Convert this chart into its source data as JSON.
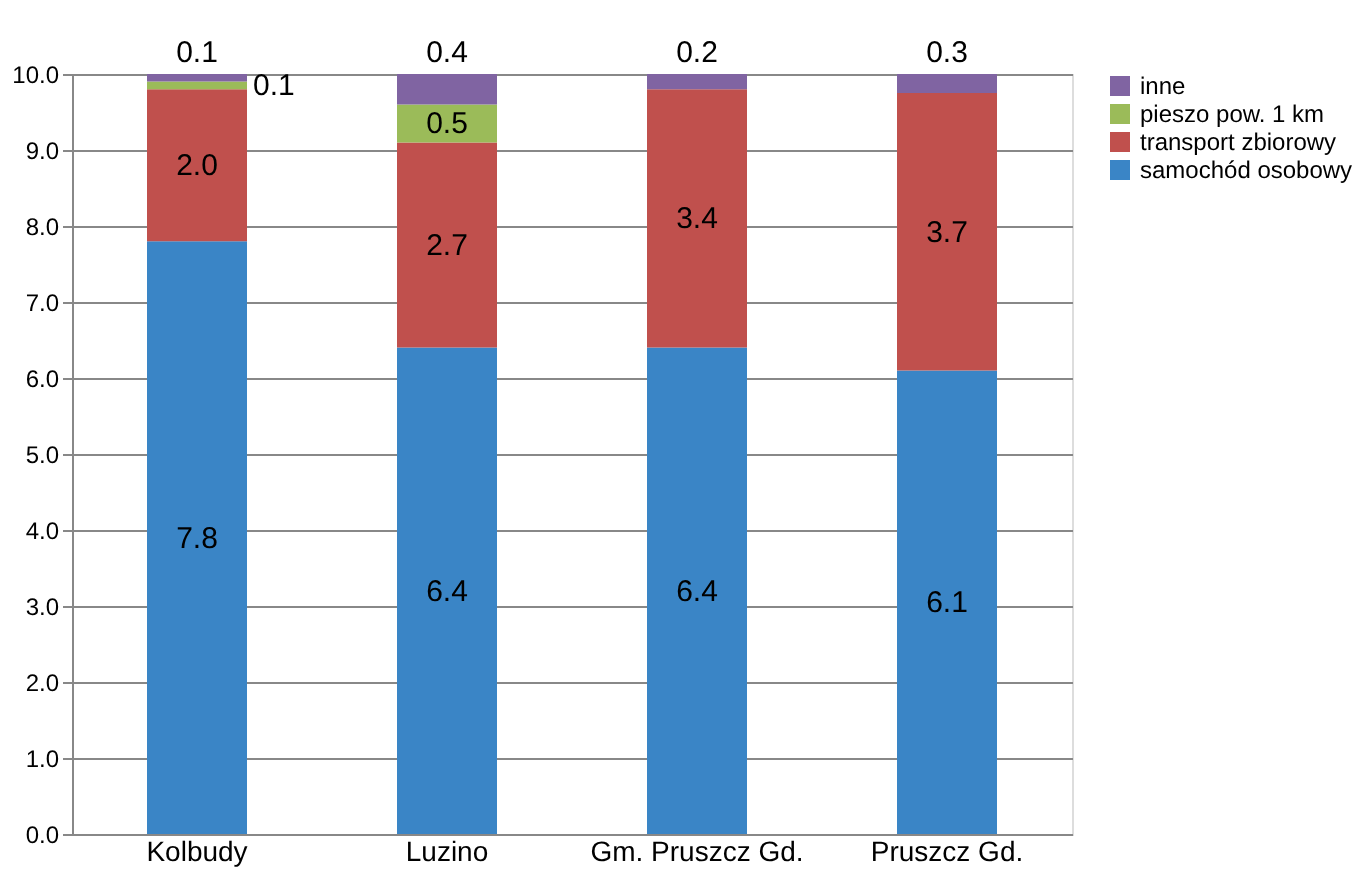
{
  "chart_data": {
    "type": "bar",
    "stacked": true,
    "categories": [
      "Kolbudy",
      "Luzino",
      "Gm. Pruszcz Gd.",
      "Pruszcz Gd."
    ],
    "series": [
      {
        "name": "samochód osobowy",
        "color": "#3a85c6",
        "values": [
          7.8,
          6.4,
          6.4,
          6.1
        ],
        "value_labels": [
          "7.8",
          "6.4",
          "6.4",
          "6.1"
        ]
      },
      {
        "name": "transport zbiorowy",
        "color": "#c0504d",
        "values": [
          2.0,
          2.7,
          3.4,
          3.65
        ],
        "value_labels": [
          "2.0",
          "2.7",
          "3.4",
          "3.7"
        ]
      },
      {
        "name": "pieszo pow. 1 km",
        "color": "#9bbb59",
        "values": [
          0.1,
          0.5,
          null,
          null
        ],
        "value_labels": [
          "0.1",
          "0.5",
          null,
          null
        ]
      },
      {
        "name": "inne",
        "color": "#8064a2",
        "values": [
          0.1,
          0.4,
          0.2,
          0.25
        ],
        "value_labels": [
          "0.1",
          "0.4",
          "0.2",
          "0.3"
        ]
      }
    ],
    "ylim": [
      0,
      10
    ],
    "yticks": [
      {
        "value": 0,
        "label": "0.0"
      },
      {
        "value": 1,
        "label": "1.0"
      },
      {
        "value": 2,
        "label": "2.0"
      },
      {
        "value": 3,
        "label": "3.0"
      },
      {
        "value": 4,
        "label": "4.0"
      },
      {
        "value": 5,
        "label": "5.0"
      },
      {
        "value": 6,
        "label": "6.0"
      },
      {
        "value": 7,
        "label": "7.0"
      },
      {
        "value": 8,
        "label": "8.0"
      },
      {
        "value": 9,
        "label": "9.0"
      },
      {
        "value": 10,
        "label": "10.0"
      }
    ],
    "grid": "y",
    "legend": "right"
  }
}
